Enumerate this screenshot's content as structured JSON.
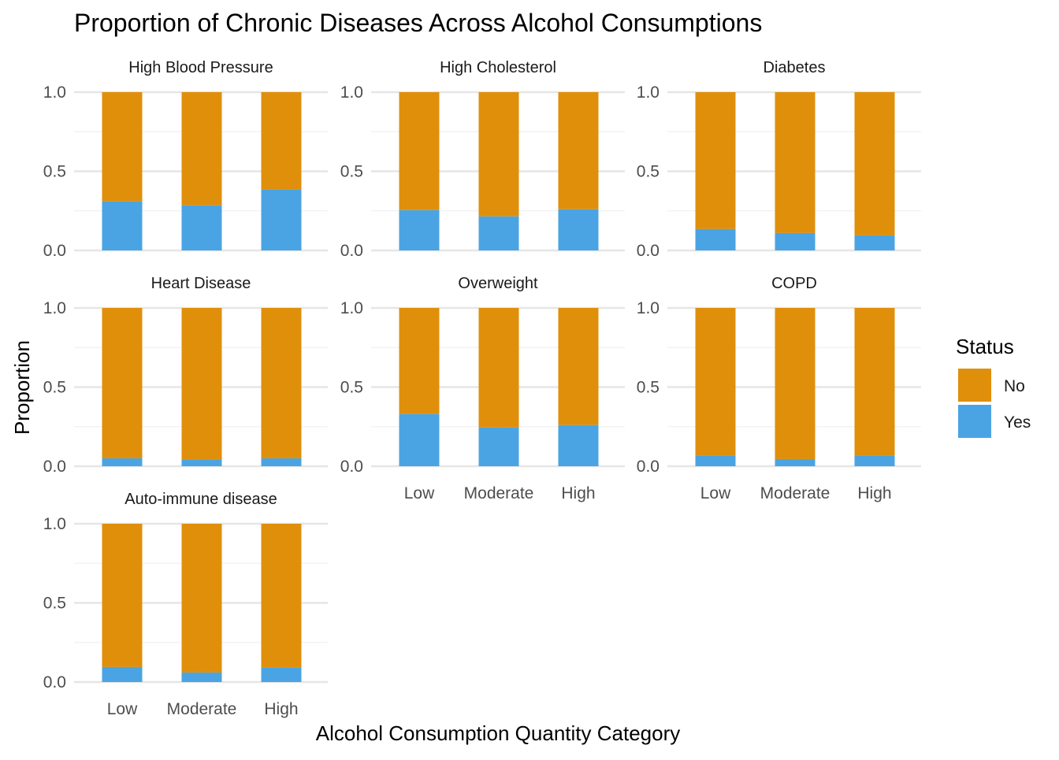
{
  "colors": {
    "No": "#e08f0b",
    "Yes": "#4aa4e3",
    "grid_major": "#e6e6e6",
    "grid_minor": "#f0f0f0"
  },
  "chart_data": {
    "type": "bar",
    "stacked": true,
    "title": "Proportion of Chronic Diseases Across Alcohol Consumptions",
    "xlabel": "Alcohol Consumption Quantity Category",
    "ylabel": "Proportion",
    "ylim": [
      0,
      1
    ],
    "yticks": [
      "0.0",
      "0.5",
      "1.0"
    ],
    "categories": [
      "Low",
      "Moderate",
      "High"
    ],
    "legend": {
      "title": "Status",
      "position": "right",
      "entries": [
        "No",
        "Yes"
      ]
    },
    "grid": true,
    "panels": [
      {
        "name": "High Blood Pressure",
        "yes": [
          0.31,
          0.285,
          0.385
        ],
        "show_x_labels": false
      },
      {
        "name": "High Cholesterol",
        "yes": [
          0.255,
          0.215,
          0.26
        ],
        "show_x_labels": false
      },
      {
        "name": "Diabetes",
        "yes": [
          0.135,
          0.11,
          0.095
        ],
        "show_x_labels": false
      },
      {
        "name": "Heart Disease",
        "yes": [
          0.05,
          0.04,
          0.05
        ],
        "show_x_labels": false
      },
      {
        "name": "Overweight",
        "yes": [
          0.33,
          0.245,
          0.26
        ],
        "show_x_labels": true
      },
      {
        "name": "COPD",
        "yes": [
          0.065,
          0.045,
          0.065
        ],
        "show_x_labels": true
      },
      {
        "name": "Auto-immune disease",
        "yes": [
          0.095,
          0.06,
          0.09
        ],
        "show_x_labels": true
      }
    ]
  }
}
